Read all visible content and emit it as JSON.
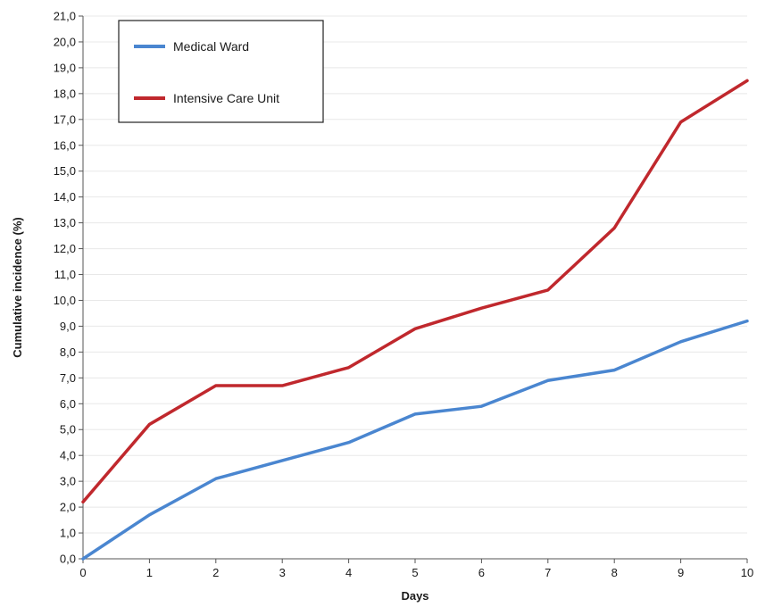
{
  "chart_data": {
    "type": "line",
    "title": "",
    "xlabel": "Days",
    "ylabel": "Cumulative incidence (%)",
    "x": [
      0,
      1,
      2,
      3,
      4,
      5,
      6,
      7,
      8,
      9,
      10
    ],
    "xlim": [
      0,
      10
    ],
    "ylim": [
      0,
      21
    ],
    "x_ticks": [
      "0",
      "1",
      "2",
      "3",
      "4",
      "5",
      "6",
      "7",
      "8",
      "9",
      "10"
    ],
    "y_ticks": [
      "0,0",
      "1,0",
      "2,0",
      "3,0",
      "4,0",
      "5,0",
      "6,0",
      "7,0",
      "8,0",
      "9,0",
      "10,0",
      "11,0",
      "12,0",
      "13,0",
      "14,0",
      "15,0",
      "16,0",
      "17,0",
      "18,0",
      "19,0",
      "20,0",
      "21,0"
    ],
    "grid": true,
    "legend_position": "top-left",
    "series": [
      {
        "name": "Medical Ward",
        "color": "#4a86d0",
        "values": [
          0.0,
          1.7,
          3.1,
          3.8,
          4.5,
          5.6,
          5.9,
          6.9,
          7.3,
          8.4,
          9.2
        ]
      },
      {
        "name": "Intensive Care Unit",
        "color": "#c0282d",
        "values": [
          2.2,
          5.2,
          6.7,
          6.7,
          7.4,
          8.9,
          9.7,
          10.4,
          12.8,
          16.9,
          18.5
        ]
      }
    ]
  }
}
